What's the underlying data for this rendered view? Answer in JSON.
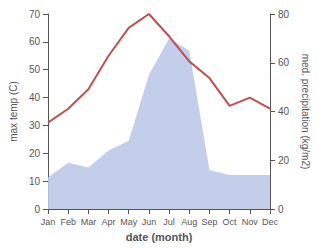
{
  "chart_data": {
    "type": "line",
    "xlabel": "date (month)",
    "ylabel": "max temp (C)",
    "y2label": "med. precipitation (kg/m2)",
    "categories": [
      "Jan",
      "Feb",
      "Mar",
      "Apr",
      "May",
      "Jun",
      "Jul",
      "Aug",
      "Sep",
      "Oct",
      "Nov",
      "Dec"
    ],
    "series": [
      {
        "type": "area",
        "axis": "y2",
        "color": "#bdc9e8",
        "values": [
          13,
          19,
          17,
          24,
          28,
          55,
          70,
          65,
          16,
          14,
          14,
          14
        ]
      },
      {
        "type": "line",
        "axis": "y",
        "color": "#c0504d",
        "values": [
          31,
          36,
          43,
          55,
          65,
          70,
          62,
          53,
          47,
          37,
          40,
          36
        ]
      }
    ],
    "ylim": [
      0,
      70
    ],
    "yticks": [
      0,
      10,
      20,
      30,
      40,
      50,
      60,
      70
    ],
    "y2lim": [
      0,
      80
    ],
    "y2ticks": [
      0,
      20,
      40,
      60,
      80
    ],
    "grid": false
  }
}
